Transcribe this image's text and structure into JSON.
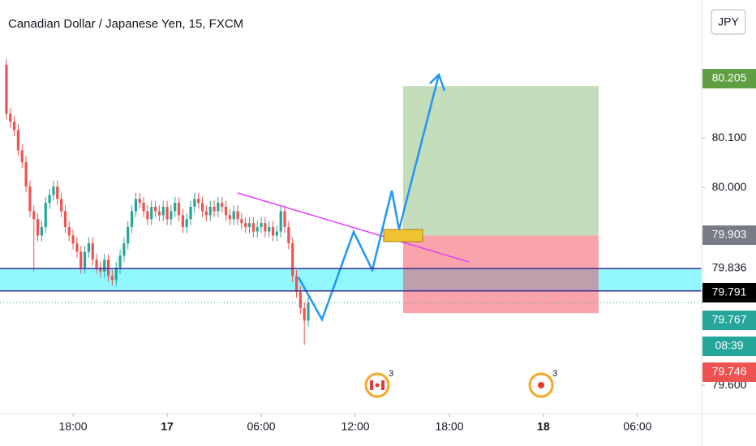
{
  "chart_data": {
    "type": "candlestick",
    "title": "Canadian Dollar / Japanese Yen, 15, FXCM",
    "currency": "JPY",
    "x": [
      13.75,
      14,
      14.25,
      14.5,
      14.75,
      15,
      15.25,
      15.5,
      15.75,
      16,
      16.25,
      16.5,
      16.75,
      17,
      17.25,
      17.5,
      17.75,
      18,
      18.25,
      18.5,
      18.75,
      19,
      19.25,
      19.5,
      19.75,
      20,
      20.25,
      20.5,
      20.75,
      21,
      21.25,
      21.5,
      21.75,
      22,
      22.25,
      22.5,
      22.75,
      23,
      23.25,
      23.5,
      23.75,
      24,
      24.25,
      24.5,
      24.75,
      25,
      25.25,
      25.5,
      25.75,
      26,
      26.25,
      26.5,
      26.75,
      27,
      27.25,
      27.5,
      27.75,
      28,
      28.25,
      28.5,
      28.75,
      29,
      29.25,
      29.5,
      29.75,
      30,
      30.25,
      30.5,
      30.75,
      31,
      31.25,
      31.5,
      31.75,
      32,
      32.25,
      32.5,
      32.75,
      33
    ],
    "open": [
      80.248,
      80.149,
      80.133,
      80.116,
      80.075,
      80.051,
      80.002,
      79.952,
      79.936,
      79.903,
      79.92,
      79.969,
      79.985,
      80.002,
      79.977,
      79.952,
      79.92,
      79.903,
      79.887,
      79.87,
      79.838,
      79.87,
      79.887,
      79.854,
      79.838,
      79.83,
      79.854,
      79.821,
      79.813,
      79.838,
      79.862,
      79.887,
      79.92,
      79.952,
      79.977,
      79.969,
      79.952,
      79.936,
      79.961,
      79.952,
      79.944,
      79.961,
      79.936,
      79.952,
      79.969,
      79.944,
      79.92,
      79.936,
      79.961,
      79.977,
      79.969,
      79.952,
      79.944,
      79.961,
      79.952,
      79.969,
      79.961,
      79.944,
      79.936,
      79.952,
      79.936,
      79.928,
      79.92,
      79.928,
      79.911,
      79.92,
      79.928,
      79.911,
      79.92,
      79.903,
      79.911,
      79.952,
      79.92,
      79.887,
      79.821,
      79.789,
      79.756,
      79.731
    ],
    "high": [
      80.26,
      80.161,
      80.145,
      80.128,
      80.087,
      80.063,
      80.014,
      79.964,
      79.948,
      79.932,
      79.981,
      79.997,
      80.014,
      80.014,
      79.989,
      79.964,
      79.932,
      79.915,
      79.899,
      79.882,
      79.882,
      79.899,
      79.899,
      79.866,
      79.85,
      79.866,
      79.866,
      79.833,
      79.85,
      79.874,
      79.899,
      79.932,
      79.964,
      79.989,
      79.989,
      79.981,
      79.964,
      79.973,
      79.973,
      79.964,
      79.973,
      79.973,
      79.964,
      79.981,
      79.981,
      79.956,
      79.948,
      79.973,
      79.989,
      79.989,
      79.981,
      79.964,
      79.973,
      79.973,
      79.981,
      79.981,
      79.973,
      79.956,
      79.964,
      79.964,
      79.948,
      79.94,
      79.94,
      79.94,
      79.932,
      79.94,
      79.94,
      79.932,
      79.932,
      79.923,
      79.964,
      79.964,
      79.932,
      79.899,
      79.833,
      79.801,
      79.768,
      79.779
    ],
    "low": [
      80.137,
      80.121,
      80.104,
      80.063,
      80.039,
      79.99,
      79.94,
      79.83,
      79.891,
      79.891,
      79.908,
      79.957,
      79.973,
      79.965,
      79.94,
      79.908,
      79.891,
      79.875,
      79.858,
      79.826,
      79.826,
      79.858,
      79.842,
      79.826,
      79.818,
      79.818,
      79.809,
      79.801,
      79.801,
      79.826,
      79.85,
      79.875,
      79.908,
      79.94,
      79.957,
      79.94,
      79.924,
      79.924,
      79.94,
      79.932,
      79.932,
      79.924,
      79.924,
      79.94,
      79.932,
      79.908,
      79.908,
      79.924,
      79.949,
      79.957,
      79.94,
      79.932,
      79.932,
      79.94,
      79.94,
      79.949,
      79.932,
      79.924,
      79.924,
      79.924,
      79.916,
      79.908,
      79.908,
      79.899,
      79.899,
      79.908,
      79.899,
      79.899,
      79.891,
      79.891,
      79.899,
      79.908,
      79.875,
      79.809,
      79.777,
      79.744,
      79.682,
      79.719
    ],
    "close": [
      80.149,
      80.133,
      80.116,
      80.075,
      80.051,
      80.002,
      79.952,
      79.936,
      79.903,
      79.92,
      79.969,
      79.985,
      80.002,
      79.977,
      79.952,
      79.92,
      79.903,
      79.887,
      79.87,
      79.838,
      79.87,
      79.887,
      79.854,
      79.838,
      79.83,
      79.854,
      79.821,
      79.813,
      79.838,
      79.862,
      79.887,
      79.92,
      79.952,
      79.977,
      79.969,
      79.952,
      79.936,
      79.961,
      79.952,
      79.944,
      79.961,
      79.936,
      79.952,
      79.969,
      79.944,
      79.92,
      79.936,
      79.961,
      79.977,
      79.969,
      79.952,
      79.944,
      79.961,
      79.952,
      79.969,
      79.961,
      79.944,
      79.936,
      79.952,
      79.936,
      79.928,
      79.92,
      79.928,
      79.911,
      79.92,
      79.928,
      79.911,
      79.92,
      79.903,
      79.911,
      79.952,
      79.92,
      79.887,
      79.821,
      79.789,
      79.756,
      79.731,
      79.767
    ],
    "up_color": "#26a69a",
    "down_color": "#ef5350",
    "xlim": [
      13.34,
      58.09
    ],
    "ylim": [
      79.543,
      80.379
    ],
    "xticks": [
      {
        "value": 18,
        "label": "18:00"
      },
      {
        "value": 24,
        "label": "17"
      },
      {
        "value": 30,
        "label": "06:00"
      },
      {
        "value": 36,
        "label": "12:00"
      },
      {
        "value": 42,
        "label": "18:00"
      },
      {
        "value": 48,
        "label": "18"
      },
      {
        "value": 54,
        "label": "06:00"
      }
    ],
    "yticks": [
      {
        "value": 80.1,
        "label": "80.100"
      },
      {
        "value": 80.0,
        "label": "80.000"
      },
      {
        "value": 79.6,
        "label": "79.600"
      }
    ],
    "band": [
      79.836,
      79.791
    ],
    "position": {
      "target": 80.205,
      "entry": 79.903,
      "stop": 79.746,
      "x": [
        39.05,
        51.52
      ]
    },
    "last_price": 79.767,
    "countdown": "08:39",
    "events": [
      {
        "x": 37.4,
        "label": "3"
      },
      {
        "x": 47.85,
        "label": "3"
      }
    ]
  }
}
